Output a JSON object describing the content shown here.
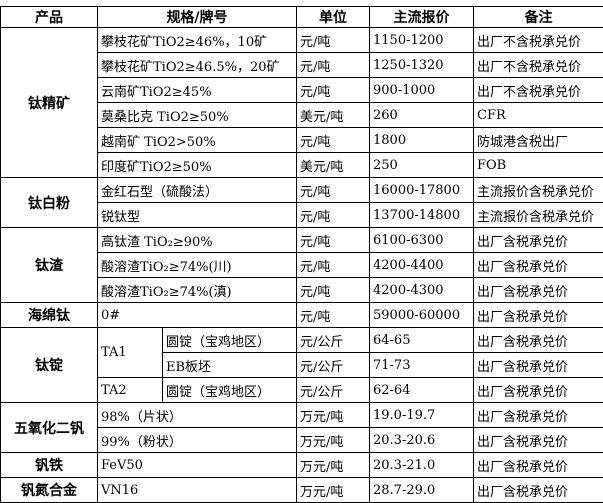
{
  "header": [
    "产品",
    "规格/牌号",
    "单位",
    "主流报价",
    "备注"
  ],
  "groups": [
    {
      "product": "钛精矿",
      "rows": [
        {
          "spec": "攀枝花矿TiO2≥46%，10矿",
          "unit": "元/吨",
          "price": "1150-1200",
          "note": "出厂不含税承兑价"
        },
        {
          "spec": "攀枝花矿TiO2≥46.5%，20矿",
          "unit": "元/吨",
          "price": "1250-1320",
          "note": "出厂不含税承兑价"
        },
        {
          "spec": "云南矿TiO2≥45%",
          "unit": "元/吨",
          "price": "900-1000",
          "note": "出厂不含税承兑价"
        },
        {
          "spec": "莫桑比克 TiO2≥50%",
          "unit": "美元/吨",
          "price": "260",
          "note": "CFR"
        },
        {
          "spec": "越南矿 TiO2>50%",
          "unit": "元/吨",
          "price": "1800",
          "note": "防城港含税出厂"
        },
        {
          "spec": "印度矿TiO2≥50%",
          "unit": "美元/吨",
          "price": "250",
          "note": "FOB"
        }
      ]
    },
    {
      "product": "钛白粉",
      "rows": [
        {
          "spec": "金红石型（硫酸法）",
          "unit": "元/吨",
          "price": "16000-17800",
          "note": "主流报价含税承兑价"
        },
        {
          "spec": "锐钛型",
          "unit": "元/吨",
          "price": "13700-14800",
          "note": "主流报价含税承兑价"
        }
      ]
    },
    {
      "product": "钛渣",
      "rows": [
        {
          "spec": "高钛渣 TiO₂≥90%",
          "unit": "元/吨",
          "price": "6100-6300",
          "note": "出厂含税承兑价"
        },
        {
          "spec": "酸溶渣TiO₂≥74%(川)",
          "unit": "元/吨",
          "price": "4200-4400",
          "note": "出厂含税承兑价"
        },
        {
          "spec": "酸溶渣TiO₂≥74%(滇)",
          "unit": "元/吨",
          "price": "4200-4300",
          "note": "出厂含税承兑价"
        }
      ]
    },
    {
      "product": "海绵钛",
      "rows": [
        {
          "spec": "0#",
          "unit": "元/吨",
          "price": "59000-60000",
          "note": "出厂含税承兑价"
        }
      ]
    },
    {
      "product": "钛锭",
      "subgroups": [
        {
          "grade": "TA1",
          "rows": [
            {
              "spec": "圆锭（宝鸡地区）",
              "unit": "元/公斤",
              "price": "64-65",
              "note": "出厂含税承兑价"
            },
            {
              "spec": "EB板坯",
              "unit": "元/公斤",
              "price": "71-73",
              "note": "出厂含税承兑价"
            }
          ]
        },
        {
          "grade": "TA2",
          "rows": [
            {
              "spec": "圆锭（宝鸡地区）",
              "unit": "元/公斤",
              "price": "62-64",
              "note": "出厂含税承兑价"
            }
          ]
        }
      ]
    },
    {
      "product": "五氧化二钒",
      "rows": [
        {
          "spec": "98%（片状）",
          "unit": "万元/吨",
          "price": "19.0-19.7",
          "note": "出厂含税承兑价"
        },
        {
          "spec": "99%（粉状）",
          "unit": "万元/吨",
          "price": "20.3-20.6",
          "note": "出厂含税承兑价"
        }
      ]
    },
    {
      "product": "钒铁",
      "rows": [
        {
          "spec": "FeV50",
          "unit": "万元/吨",
          "price": "20.3-21.0",
          "note": "出厂含税承兑价"
        }
      ]
    },
    {
      "product": "钒氮合金",
      "rows": [
        {
          "spec": "VN16",
          "unit": "万元/吨",
          "price": "28.7-29.0",
          "note": "出厂含税承兑价"
        }
      ]
    }
  ]
}
